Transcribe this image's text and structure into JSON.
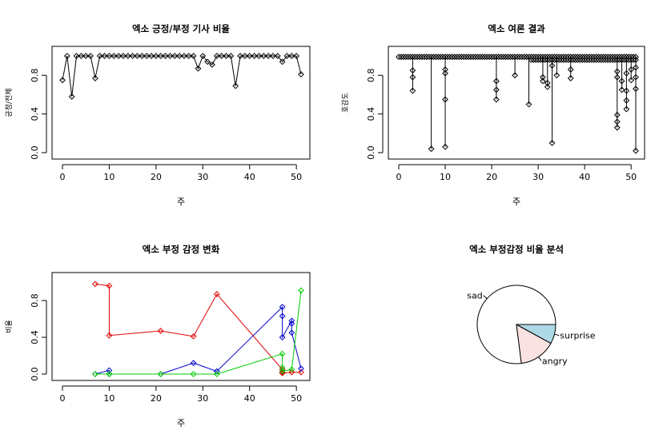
{
  "chart_data": [
    {
      "type": "line",
      "title": "엑소  긍정/부정 기사 비율",
      "xlabel": "주",
      "ylabel": "긍정/전체",
      "xlim": [
        0,
        51
      ],
      "ylim": [
        0,
        1
      ],
      "xticks": [
        "0",
        "10",
        "20",
        "30",
        "40",
        "50"
      ],
      "yticks": [
        "0.0",
        "0.4",
        "0.8"
      ],
      "series": [
        {
          "color": "#000000",
          "x": [
            0,
            1,
            2,
            3,
            4,
            5,
            6,
            7,
            8,
            9,
            10,
            11,
            12,
            13,
            14,
            15,
            16,
            17,
            18,
            19,
            20,
            21,
            22,
            23,
            24,
            25,
            26,
            27,
            28,
            29,
            30,
            31,
            32,
            33,
            34,
            35,
            36,
            37,
            38,
            39,
            40,
            41,
            42,
            43,
            44,
            45,
            46,
            47,
            48,
            49,
            50,
            51
          ],
          "y": [
            0.75,
            1.0,
            0.58,
            1.0,
            1.0,
            1.0,
            1.0,
            0.77,
            1.0,
            1.0,
            1.0,
            1.0,
            1.0,
            1.0,
            1.0,
            1.0,
            1.0,
            1.0,
            1.0,
            1.0,
            1.0,
            1.0,
            1.0,
            1.0,
            1.0,
            1.0,
            1.0,
            1.0,
            1.0,
            0.87,
            1.0,
            0.94,
            0.91,
            1.0,
            1.0,
            1.0,
            1.0,
            0.69,
            1.0,
            1.0,
            1.0,
            1.0,
            1.0,
            1.0,
            1.0,
            1.0,
            1.0,
            0.94,
            1.0,
            1.0,
            1.0,
            0.81
          ]
        }
      ]
    },
    {
      "type": "scatter",
      "title": "엑소  여론 결과",
      "xlabel": "주",
      "ylabel": "호감도",
      "xlim": [
        0,
        51
      ],
      "ylim": [
        0,
        1
      ],
      "xticks": [
        "0",
        "10",
        "20",
        "30",
        "40",
        "50"
      ],
      "yticks": [
        "0.0",
        "0.4",
        "0.8"
      ],
      "low_points": [
        [
          3,
          0.64
        ],
        [
          3,
          0.78
        ],
        [
          3,
          0.85
        ],
        [
          7,
          0.04
        ],
        [
          10,
          0.06
        ],
        [
          10,
          0.55
        ],
        [
          10,
          0.82
        ],
        [
          10,
          0.86
        ],
        [
          21,
          0.55
        ],
        [
          21,
          0.65
        ],
        [
          21,
          0.74
        ],
        [
          25,
          0.8
        ],
        [
          28,
          0.5
        ],
        [
          31,
          0.74
        ],
        [
          31,
          0.78
        ],
        [
          32,
          0.68
        ],
        [
          32,
          0.72
        ],
        [
          33,
          0.1
        ],
        [
          33,
          0.9
        ],
        [
          34,
          0.8
        ],
        [
          37,
          0.77
        ],
        [
          37,
          0.86
        ],
        [
          47,
          0.26
        ],
        [
          47,
          0.32
        ],
        [
          47,
          0.39
        ],
        [
          47,
          0.78
        ],
        [
          47,
          0.84
        ],
        [
          48,
          0.65
        ],
        [
          48,
          0.74
        ],
        [
          49,
          0.45
        ],
        [
          49,
          0.54
        ],
        [
          49,
          0.64
        ],
        [
          49,
          0.82
        ],
        [
          50,
          0.75
        ],
        [
          50,
          0.86
        ],
        [
          51,
          0.02
        ],
        [
          51,
          0.66
        ],
        [
          51,
          0.78
        ],
        [
          51,
          0.88
        ]
      ]
    },
    {
      "type": "line",
      "title": "엑소  부정 감정 변화",
      "xlabel": "주",
      "ylabel": "비율",
      "xlim": [
        0,
        51
      ],
      "ylim": [
        0,
        1
      ],
      "xticks": [
        "0",
        "10",
        "20",
        "30",
        "40",
        "50"
      ],
      "yticks": [
        "0.0",
        "0.4",
        "0.8"
      ],
      "series": [
        {
          "color": "#DF0000",
          "x": [
            7,
            10,
            10,
            21,
            28,
            33,
            47,
            47,
            47,
            49,
            51
          ],
          "y": [
            0.98,
            0.96,
            0.42,
            0.47,
            0.41,
            0.87,
            0.05,
            0.02,
            0.01,
            0.02,
            0.02
          ]
        },
        {
          "color": "#0000CC",
          "x": [
            7,
            10,
            10,
            21,
            28,
            33,
            47,
            47,
            47,
            49,
            49,
            49,
            51
          ],
          "y": [
            0.0,
            0.04,
            0.0,
            0.0,
            0.12,
            0.03,
            0.73,
            0.63,
            0.4,
            0.58,
            0.55,
            0.45,
            0.06
          ]
        },
        {
          "color": "#00CC00",
          "x": [
            7,
            10,
            10,
            21,
            28,
            33,
            47,
            47,
            47,
            49,
            51
          ],
          "y": [
            0.0,
            0.0,
            0.0,
            0.0,
            0.0,
            0.0,
            0.22,
            0.07,
            0.03,
            0.05,
            0.91
          ]
        }
      ]
    },
    {
      "type": "pie",
      "title": "엑소  부정감정 비율 분석",
      "labels": [
        "sad",
        "angry",
        "surprise"
      ],
      "values": [
        0.77,
        0.15,
        0.08
      ],
      "colors": [
        "#FFFFFF",
        "#FBE2E2",
        "#ADD8E6"
      ]
    }
  ]
}
